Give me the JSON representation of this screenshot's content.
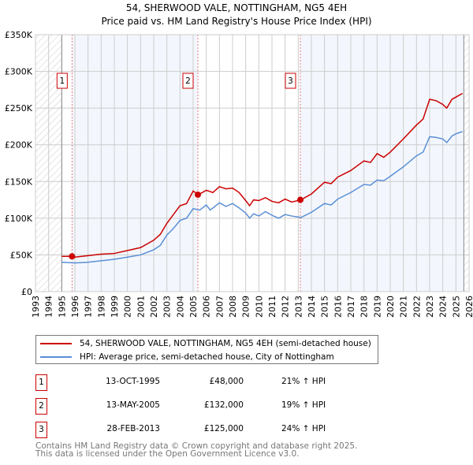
{
  "chart_data": {
    "type": "line",
    "title": "54, SHERWOOD VALE, NOTTINGHAM, NG5 4EH",
    "subtitle": "Price paid vs. HM Land Registry's House Price Index (HPI)",
    "xlim": [
      1993,
      2026
    ],
    "ylim": [
      0,
      350000
    ],
    "x_ticks": [
      "1993",
      "1994",
      "1995",
      "1996",
      "1997",
      "1998",
      "1999",
      "2000",
      "2001",
      "2002",
      "2003",
      "2004",
      "2005",
      "2006",
      "2007",
      "2008",
      "2009",
      "2010",
      "2011",
      "2012",
      "2013",
      "2014",
      "2015",
      "2016",
      "2017",
      "2018",
      "2019",
      "2020",
      "2021",
      "2022",
      "2023",
      "2024",
      "2025",
      "2026"
    ],
    "y_ticks": [
      {
        "v": 0,
        "label": "£0"
      },
      {
        "v": 50000,
        "label": "£50K"
      },
      {
        "v": 100000,
        "label": "£100K"
      },
      {
        "v": 150000,
        "label": "£150K"
      },
      {
        "v": 200000,
        "label": "£200K"
      },
      {
        "v": 250000,
        "label": "£250K"
      },
      {
        "v": 300000,
        "label": "£300K"
      },
      {
        "v": 350000,
        "label": "£350K"
      }
    ],
    "grid": true,
    "data_range": [
      1995,
      2025.6
    ],
    "series": [
      {
        "name": "54, SHERWOOD VALE, NOTTINGHAM, NG5 4EH (semi-detached house)",
        "color": "#cc0000",
        "x": [
          1995,
          1995.8,
          1996,
          1997,
          1998,
          1999,
          2000,
          2001,
          2002,
          2002.5,
          2003,
          2003.5,
          2004,
          2004.5,
          2005,
          2005.4,
          2006,
          2006.5,
          2007,
          2007.5,
          2008,
          2008.5,
          2009,
          2009.3,
          2009.6,
          2010,
          2010.5,
          2011,
          2011.5,
          2012,
          2012.5,
          2013.2,
          2014,
          2015,
          2015.5,
          2016,
          2017,
          2018,
          2018.5,
          2019,
          2019.5,
          2020,
          2021,
          2022,
          2022.5,
          2023,
          2023.5,
          2024,
          2024.3,
          2024.7,
          2025,
          2025.5
        ],
        "y": [
          48000,
          48000,
          47000,
          49000,
          51000,
          52000,
          56000,
          60000,
          70000,
          78000,
          93000,
          105000,
          117000,
          120000,
          137000,
          132000,
          138000,
          135000,
          143000,
          140000,
          141000,
          135000,
          124000,
          117000,
          125000,
          124000,
          128000,
          123000,
          121000,
          126000,
          122000,
          125000,
          133000,
          149000,
          147000,
          156000,
          165000,
          178000,
          176000,
          188000,
          183000,
          190000,
          208000,
          227000,
          235000,
          262000,
          260000,
          255000,
          250000,
          262000,
          265000,
          270000
        ]
      },
      {
        "name": "HPI: Average price, semi-detached house, City of Nottingham",
        "color": "#5b8fd6",
        "x": [
          1995,
          1996,
          1997,
          1998,
          1999,
          2000,
          2001,
          2002,
          2002.5,
          2003,
          2003.5,
          2004,
          2004.5,
          2005,
          2005.5,
          2006,
          2006.3,
          2007,
          2007.5,
          2008,
          2008.5,
          2009,
          2009.3,
          2009.6,
          2010,
          2010.5,
          2011,
          2011.5,
          2012,
          2012.5,
          2013.2,
          2014,
          2015,
          2015.5,
          2016,
          2017,
          2018,
          2018.5,
          2019,
          2019.5,
          2020,
          2021,
          2022,
          2022.5,
          2023,
          2023.5,
          2024,
          2024.3,
          2024.7,
          2025,
          2025.5
        ],
        "y": [
          40000,
          39000,
          40000,
          42000,
          44000,
          47000,
          50000,
          57000,
          63000,
          77000,
          86000,
          97000,
          100000,
          113000,
          111000,
          118000,
          111000,
          121000,
          116000,
          120000,
          114000,
          107000,
          100000,
          106000,
          103000,
          109000,
          104000,
          100000,
          105000,
          103000,
          101000,
          108000,
          120000,
          118000,
          126000,
          135000,
          146000,
          145000,
          152000,
          151000,
          157000,
          170000,
          185000,
          190000,
          211000,
          210000,
          208000,
          203000,
          212000,
          215000,
          218000
        ]
      }
    ],
    "sales": [
      {
        "label": "1",
        "x": 1995.78,
        "y": 48000,
        "date": "13-OCT-1995",
        "price": "£48,000",
        "hpi": "21% ↑ HPI"
      },
      {
        "label": "2",
        "x": 2005.36,
        "y": 132000,
        "date": "13-MAY-2005",
        "price": "£132,000",
        "hpi": "19% ↑ HPI"
      },
      {
        "label": "3",
        "x": 2013.16,
        "y": 125000,
        "date": "28-FEB-2013",
        "price": "£125,000",
        "hpi": "24% ↑ HPI"
      }
    ]
  },
  "footer": {
    "line1": "Contains HM Land Registry data © Crown copyright and database right 2025.",
    "line2": "This data is licensed under the Open Government Licence v3.0."
  }
}
